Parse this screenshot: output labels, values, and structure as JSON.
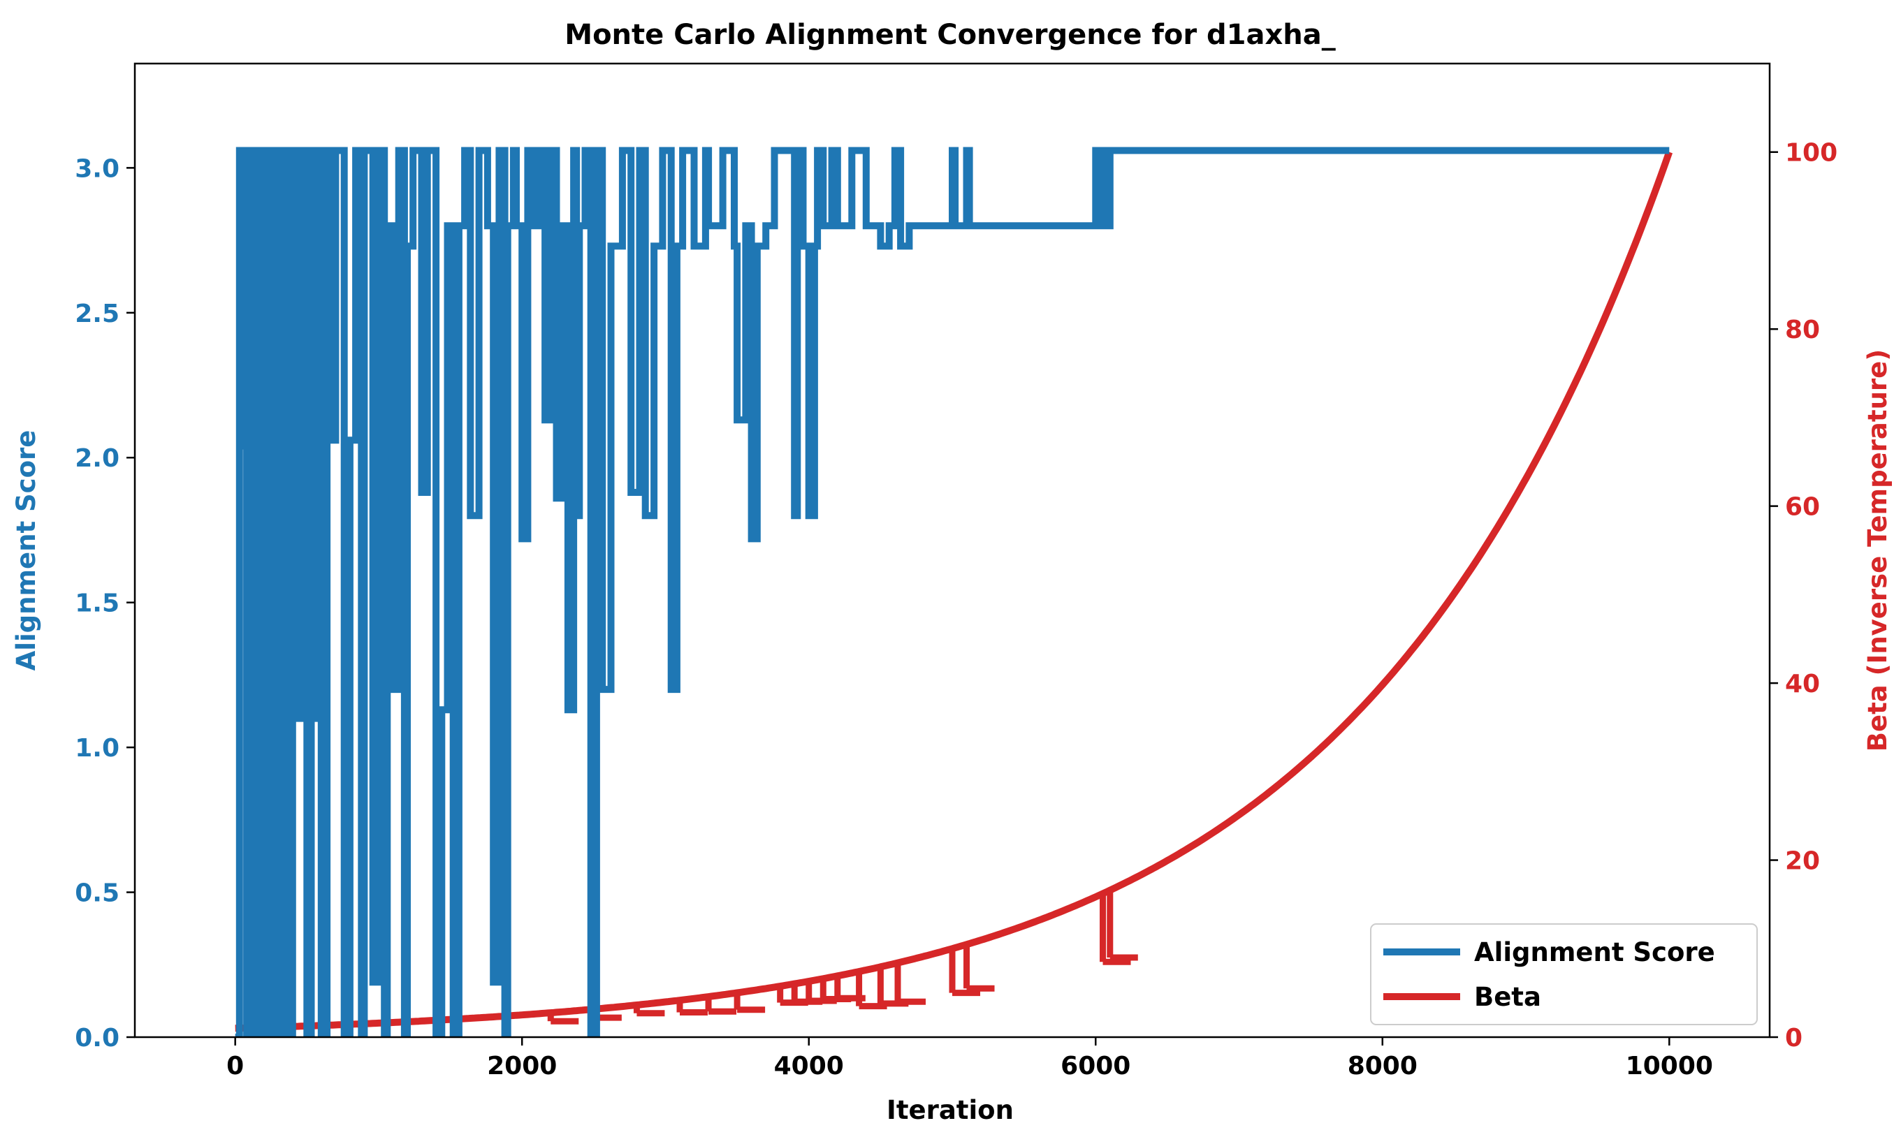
{
  "chart_data": {
    "type": "line",
    "title": "Monte Carlo Alignment Convergence for d1axha_",
    "xlabel": "Iteration",
    "ylabel_left": "Alignment Score",
    "ylabel_right": "Beta (Inverse Temperature)",
    "xlim": [
      -700,
      10700
    ],
    "ylim_left": [
      0,
      3.36
    ],
    "ylim_right": [
      0,
      110
    ],
    "xticks": [
      0,
      2000,
      4000,
      6000,
      8000,
      10000
    ],
    "xtick_labels": [
      "0",
      "2000",
      "4000",
      "6000",
      "8000",
      "10000"
    ],
    "yticks_left": [
      0.0,
      0.5,
      1.0,
      1.5,
      2.0,
      2.5,
      3.0
    ],
    "ytick_labels_left": [
      "0.0",
      "0.5",
      "1.0",
      "1.5",
      "2.0",
      "2.5",
      "3.0"
    ],
    "yticks_right": [
      0,
      20,
      40,
      60,
      80,
      100
    ],
    "ytick_labels_right": [
      "0",
      "20",
      "40",
      "60",
      "80",
      "100"
    ],
    "grid": false,
    "legend_position": "lower-right",
    "colors": {
      "score": "#1f77b4",
      "beta": "#d62728",
      "axis": "#000000"
    },
    "series": [
      {
        "name": "Alignment Score",
        "axis": "left",
        "x": [
          0,
          30,
          50,
          60,
          80,
          100,
          120,
          150,
          180,
          200,
          230,
          260,
          300,
          330,
          360,
          400,
          430,
          460,
          500,
          530,
          560,
          580,
          600,
          640,
          680,
          700,
          760,
          800,
          840,
          880,
          900,
          960,
          1000,
          1040,
          1060,
          1100,
          1140,
          1180,
          1200,
          1240,
          1300,
          1340,
          1400,
          1440,
          1480,
          1520,
          1560,
          1600,
          1640,
          1700,
          1760,
          1800,
          1840,
          1880,
          1900,
          1940,
          1960,
          2000,
          2040,
          2080,
          2120,
          2160,
          2200,
          2240,
          2280,
          2320,
          2360,
          2380,
          2400,
          2440,
          2480,
          2520,
          2560,
          2620,
          2700,
          2760,
          2820,
          2860,
          2920,
          2980,
          3040,
          3080,
          3120,
          3200,
          3280,
          3300,
          3400,
          3480,
          3500,
          3560,
          3600,
          3640,
          3700,
          3760,
          3900,
          3920,
          3960,
          4000,
          4040,
          4060,
          4100,
          4160,
          4200,
          4300,
          4400,
          4500,
          4560,
          4600,
          4640,
          4700,
          5000,
          5020,
          5100,
          5120,
          6000,
          6040,
          6060,
          6080,
          6100,
          10000
        ],
        "y": [
          0.0,
          3.06,
          2.04,
          3.06,
          0.0,
          3.06,
          0.0,
          3.06,
          0.0,
          3.06,
          0.0,
          3.06,
          0.0,
          3.06,
          0.0,
          3.06,
          1.1,
          3.06,
          0.0,
          3.06,
          1.1,
          3.06,
          0.0,
          3.06,
          2.06,
          3.06,
          0.0,
          2.06,
          3.06,
          0.0,
          3.06,
          0.19,
          3.06,
          0.0,
          2.8,
          1.2,
          3.06,
          0.0,
          2.73,
          3.06,
          1.88,
          3.06,
          0.0,
          1.13,
          2.8,
          0.0,
          2.8,
          3.06,
          1.8,
          3.06,
          2.8,
          0.19,
          3.06,
          0.0,
          2.8,
          3.06,
          2.8,
          1.72,
          3.06,
          2.8,
          3.06,
          2.13,
          3.06,
          1.86,
          2.8,
          1.13,
          3.06,
          1.8,
          2.8,
          3.06,
          0.0,
          3.06,
          1.2,
          2.73,
          3.06,
          1.88,
          3.06,
          1.8,
          2.73,
          3.06,
          1.2,
          2.73,
          3.06,
          2.73,
          3.06,
          2.8,
          3.06,
          2.73,
          2.13,
          2.8,
          1.72,
          2.73,
          2.8,
          3.06,
          1.8,
          3.06,
          2.73,
          1.8,
          2.73,
          3.06,
          2.8,
          3.06,
          2.8,
          3.06,
          2.8,
          2.73,
          2.8,
          3.06,
          2.73,
          2.8,
          3.06,
          2.8,
          3.06,
          2.8,
          3.06,
          2.8,
          3.06,
          2.8,
          3.06,
          3.06
        ]
      },
      {
        "name": "Beta",
        "axis": "right",
        "curve": "exponential",
        "start": [
          0,
          1.0
        ],
        "end": [
          10000,
          100.0
        ],
        "dips": [
          {
            "x": 2200,
            "y": 1.8
          },
          {
            "x": 2500,
            "y": 2.2
          },
          {
            "x": 2800,
            "y": 2.7
          },
          {
            "x": 3100,
            "y": 2.8
          },
          {
            "x": 3300,
            "y": 2.9
          },
          {
            "x": 3500,
            "y": 3.1
          },
          {
            "x": 3800,
            "y": 3.9
          },
          {
            "x": 3900,
            "y": 4.0
          },
          {
            "x": 4000,
            "y": 4.1
          },
          {
            "x": 4100,
            "y": 4.3
          },
          {
            "x": 4200,
            "y": 4.4
          },
          {
            "x": 4350,
            "y": 3.5
          },
          {
            "x": 4500,
            "y": 3.8
          },
          {
            "x": 4620,
            "y": 4.0
          },
          {
            "x": 5000,
            "y": 5.0
          },
          {
            "x": 5100,
            "y": 5.5
          },
          {
            "x": 6050,
            "y": 8.5
          },
          {
            "x": 6100,
            "y": 9.0
          }
        ]
      }
    ]
  }
}
